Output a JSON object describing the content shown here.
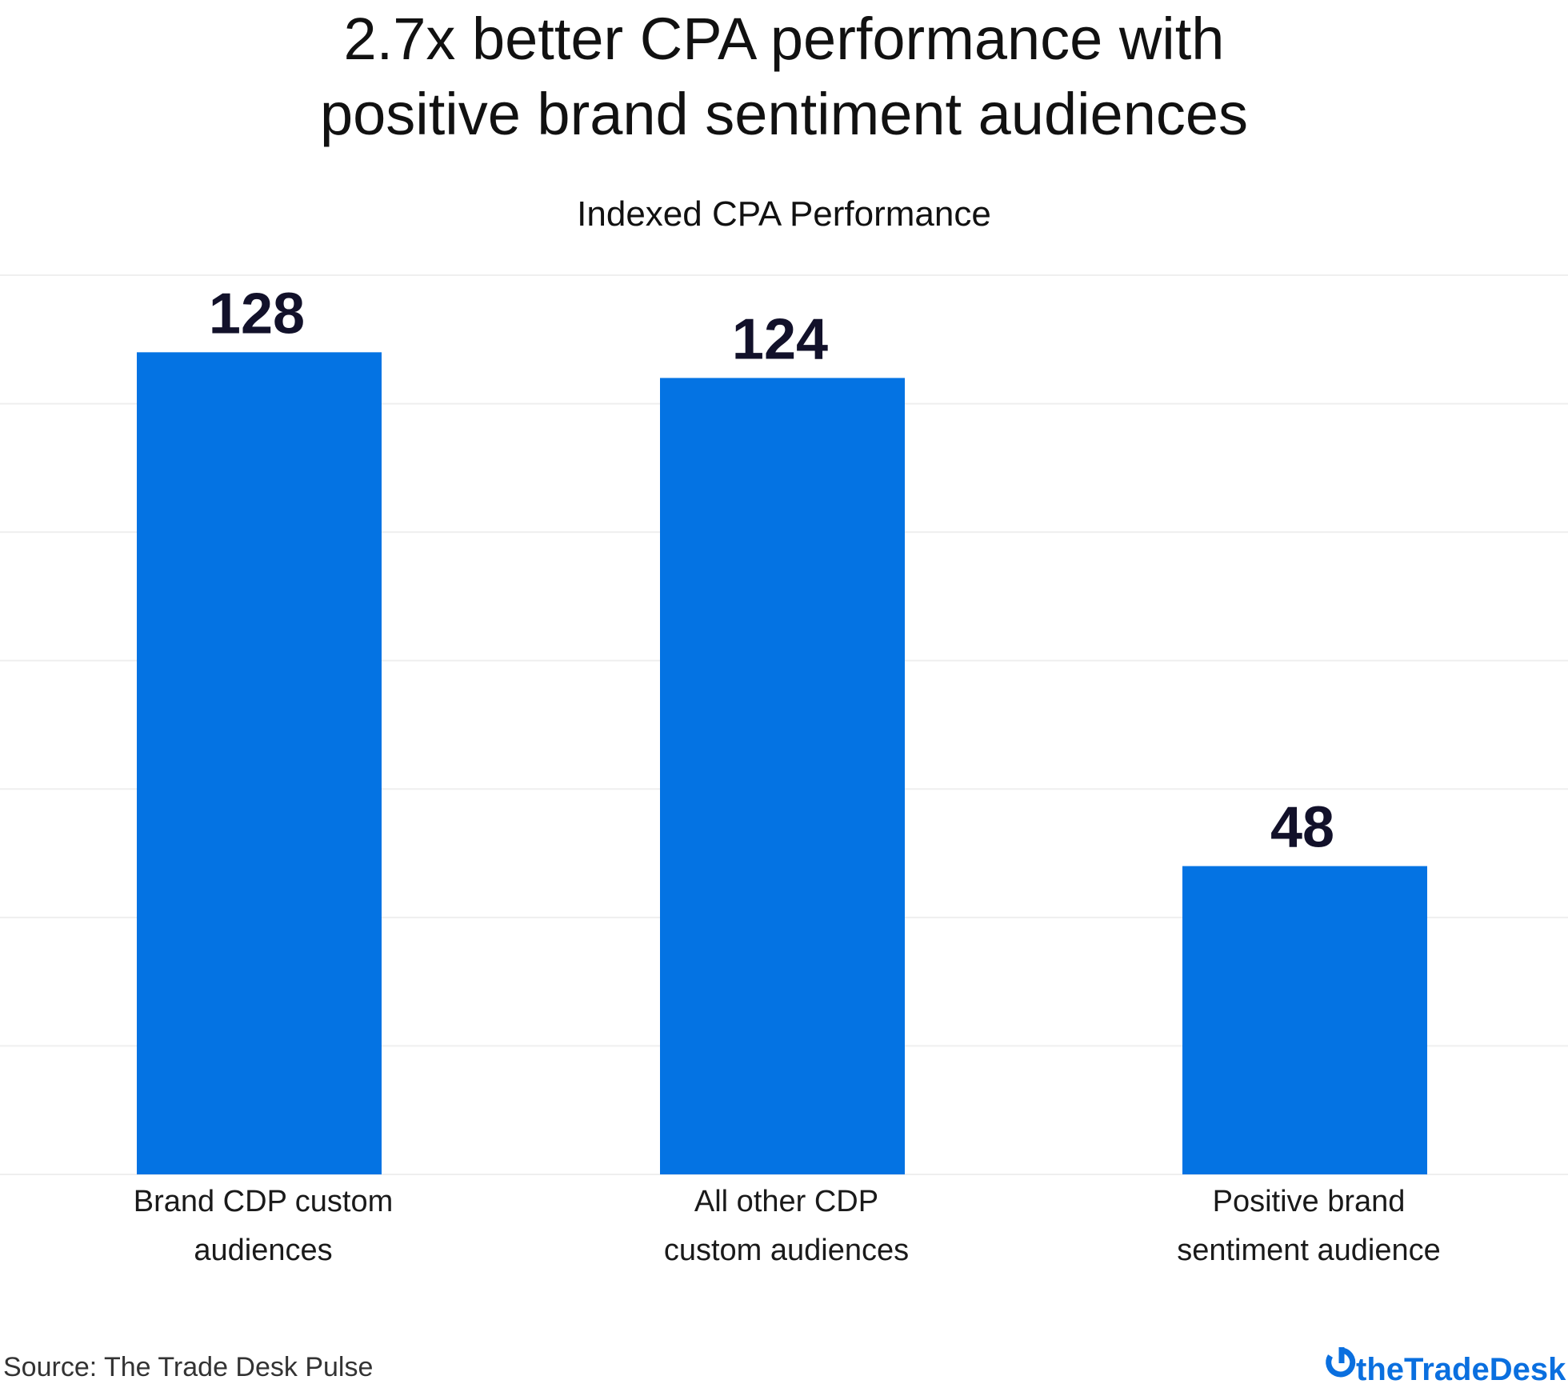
{
  "chart_data": {
    "type": "bar",
    "title": "2.7x better CPA performance with positive brand sentiment audiences",
    "title_lines": [
      "2.7x better CPA performance with",
      "positive brand sentiment audiences"
    ],
    "subtitle": "Indexed CPA Performance",
    "categories": [
      "Brand CDP custom audiences",
      "All other CDP custom audiences",
      "Positive brand sentiment audience"
    ],
    "category_lines": [
      [
        "Brand CDP custom",
        "audiences"
      ],
      [
        "All other CDP",
        "custom audiences"
      ],
      [
        "Positive brand",
        "sentiment audience"
      ]
    ],
    "values": [
      128,
      124,
      48
    ],
    "data_labels": [
      "128",
      "124",
      "48"
    ],
    "xlabel": "",
    "ylabel": "",
    "ylim": [
      0,
      140
    ],
    "gridlines": true,
    "grid_step": 20,
    "y_tick_labels_shown": false,
    "bar_color": "#0473E3",
    "gridline_color": "#EFEFEF"
  },
  "footer": {
    "source": "Source: The Trade Desk Pulse",
    "logo_text": "theTradeDesk",
    "logo_color": "#0A6FDF"
  }
}
